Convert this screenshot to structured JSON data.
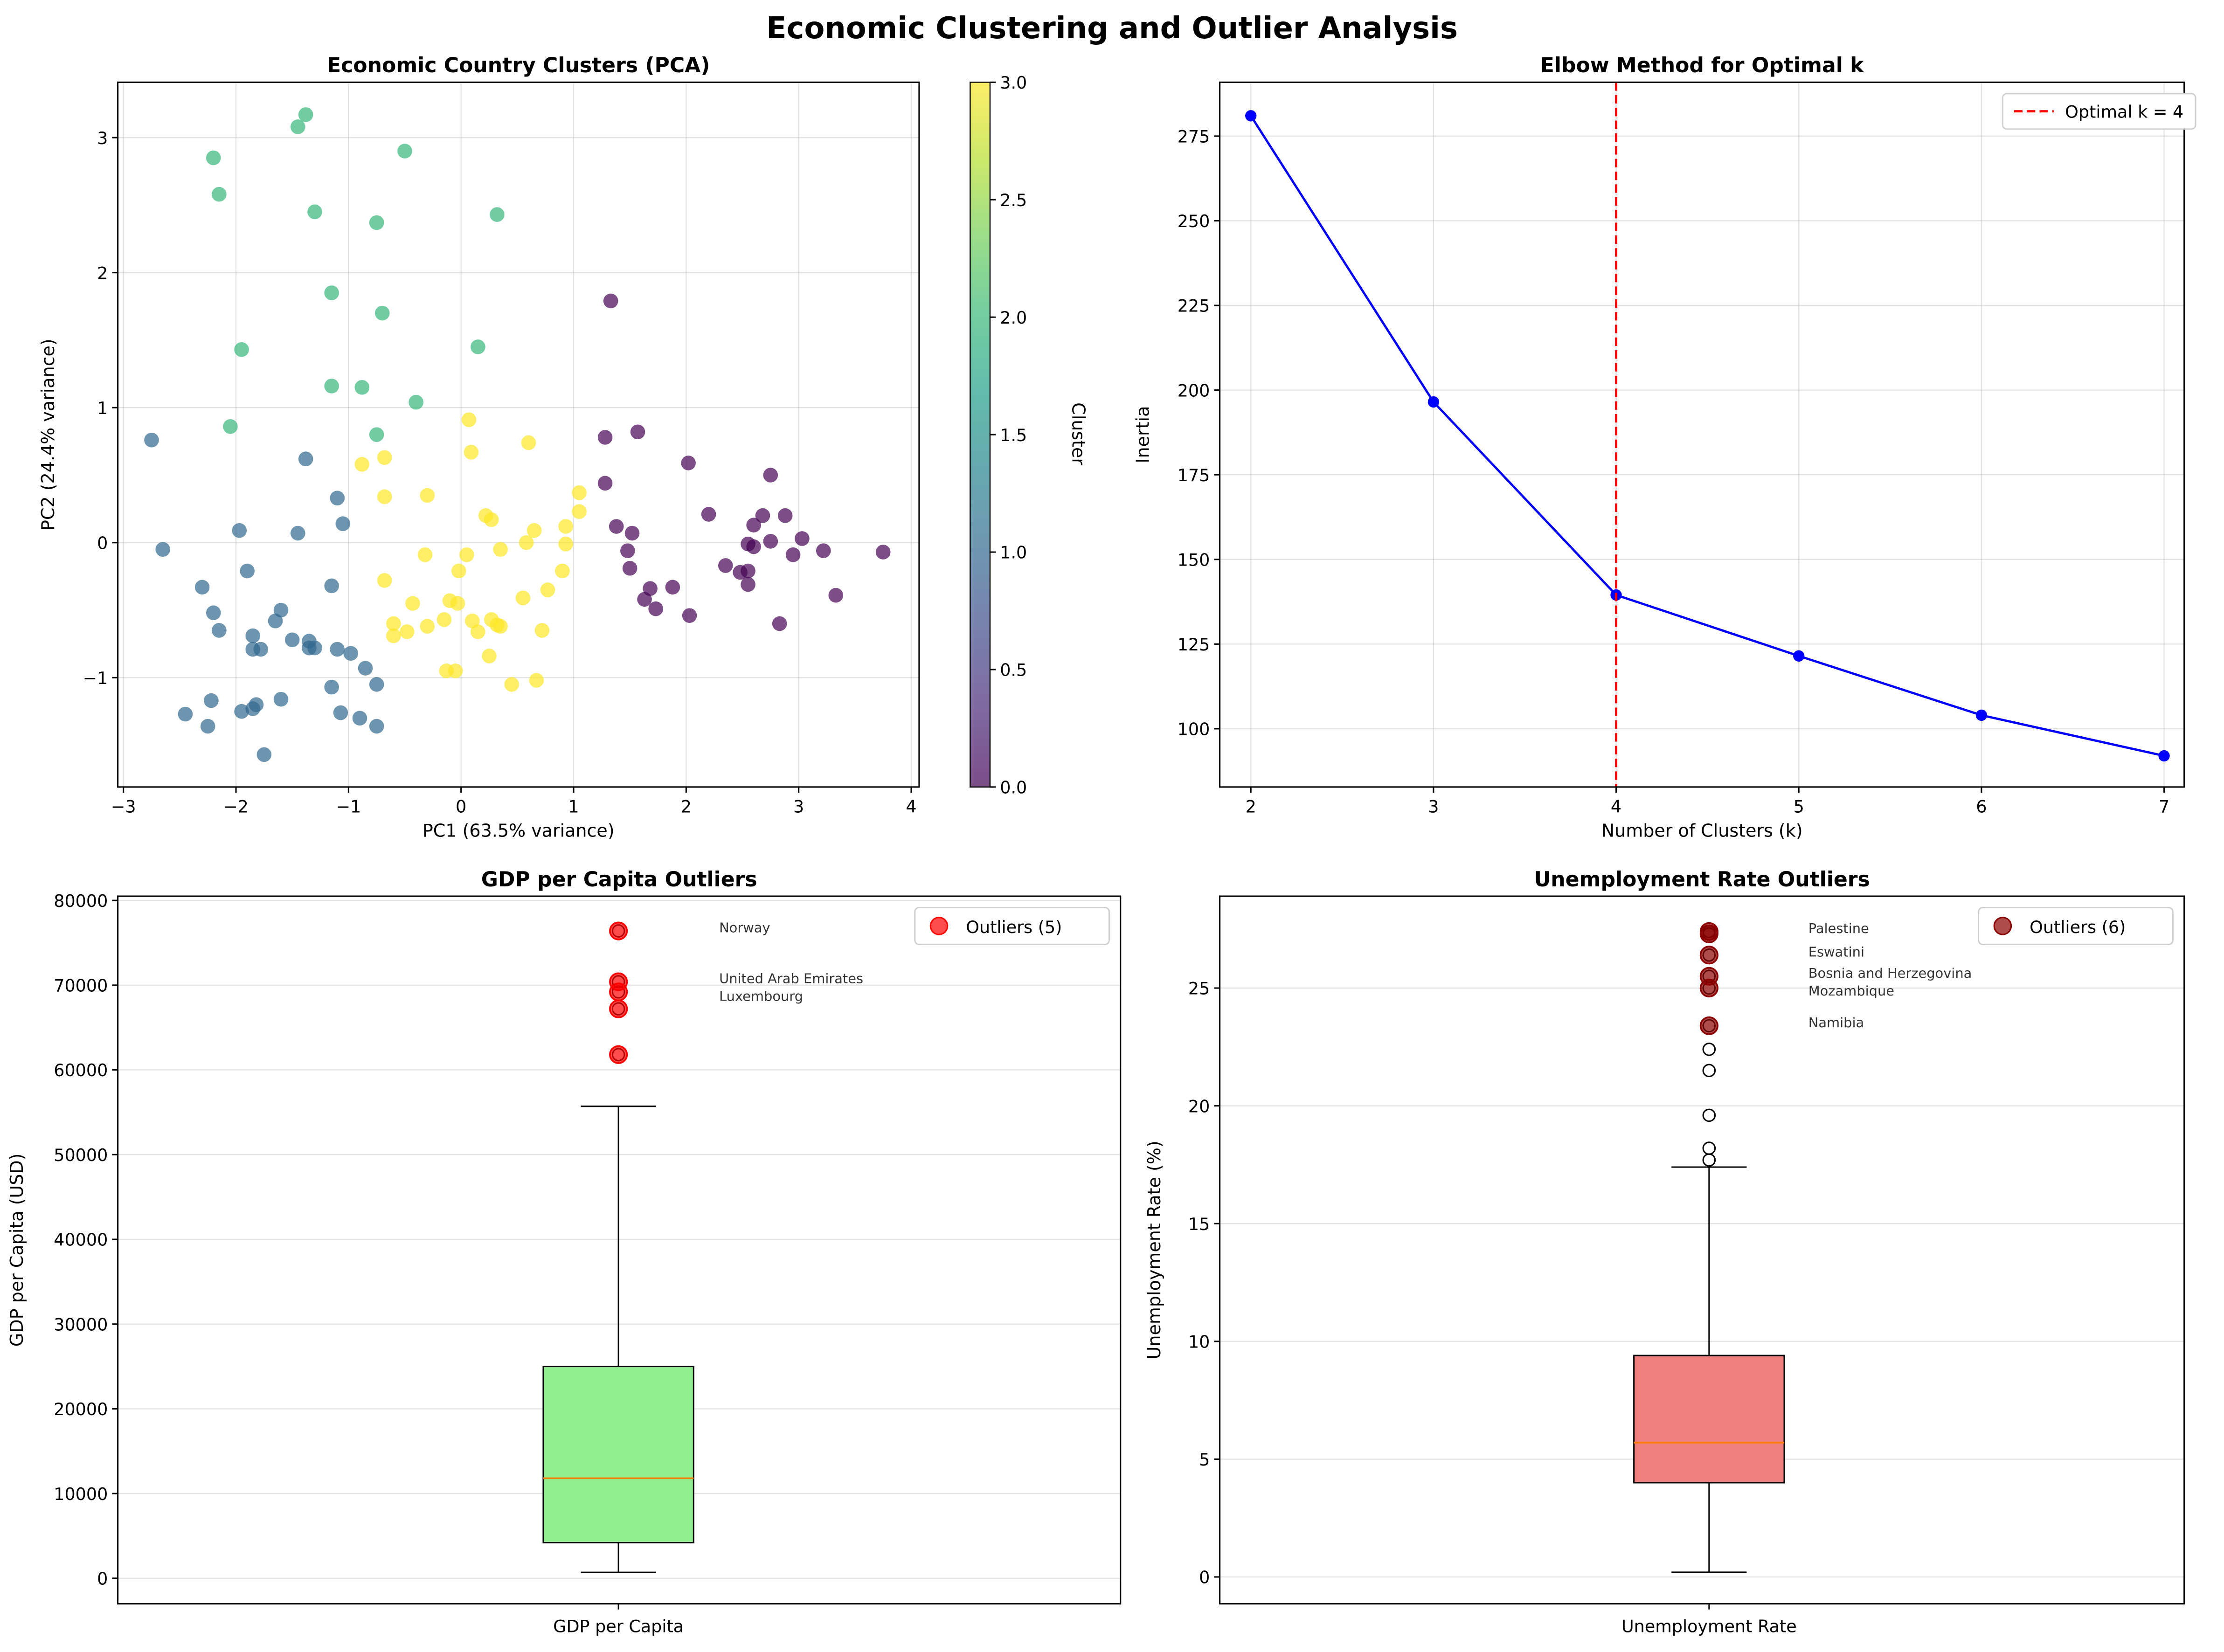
{
  "title": "Economic Clustering and Outlier Analysis",
  "chart_data": [
    {
      "type": "scatter",
      "title": "Economic Country Clusters (PCA)",
      "xlabel": "PC1 (63.5% variance)",
      "ylabel": "PC2 (24.4% variance)",
      "xlim": [
        -3.05,
        4.07
      ],
      "ylim": [
        -1.81,
        3.41
      ],
      "xticks": [
        -3,
        -2,
        -1,
        0,
        1,
        2,
        3,
        4
      ],
      "yticks": [
        -1,
        0,
        1,
        2,
        3
      ],
      "yticklabels": [
        "−1",
        "0",
        "1",
        "2",
        "3"
      ],
      "xticklabels": [
        "−3",
        "−2",
        "−1",
        "0",
        "1",
        "2",
        "3",
        "4"
      ],
      "grid": true,
      "colorbar": {
        "label": "Cluster",
        "range": [
          0,
          3
        ],
        "ticks": [
          "0.0",
          "0.5",
          "1.0",
          "1.5",
          "2.0",
          "2.5",
          "3.0"
        ]
      },
      "cluster_colors": [
        "#440154",
        "#31688e",
        "#35b779",
        "#fde725"
      ],
      "points": {
        "0": [
          [
            1.33,
            1.79
          ],
          [
            1.28,
            0.78
          ],
          [
            1.57,
            0.82
          ],
          [
            2.02,
            0.59
          ],
          [
            2.75,
            0.5
          ],
          [
            1.28,
            0.44
          ],
          [
            2.2,
            0.21
          ],
          [
            2.68,
            0.2
          ],
          [
            2.88,
            0.2
          ],
          [
            1.38,
            0.12
          ],
          [
            1.52,
            0.07
          ],
          [
            2.6,
            0.13
          ],
          [
            3.03,
            0.03
          ],
          [
            2.75,
            0.01
          ],
          [
            2.55,
            -0.01
          ],
          [
            2.6,
            -0.03
          ],
          [
            3.22,
            -0.06
          ],
          [
            3.75,
            -0.07
          ],
          [
            1.48,
            -0.06
          ],
          [
            2.95,
            -0.09
          ],
          [
            1.5,
            -0.19
          ],
          [
            2.35,
            -0.17
          ],
          [
            2.48,
            -0.22
          ],
          [
            2.55,
            -0.21
          ],
          [
            2.55,
            -0.31
          ],
          [
            1.68,
            -0.34
          ],
          [
            1.88,
            -0.33
          ],
          [
            3.33,
            -0.39
          ],
          [
            1.63,
            -0.42
          ],
          [
            1.73,
            -0.49
          ],
          [
            2.03,
            -0.54
          ],
          [
            2.83,
            -0.6
          ]
        ],
        "1": [
          [
            -2.75,
            0.76
          ],
          [
            -1.38,
            0.62
          ],
          [
            -1.1,
            0.33
          ],
          [
            -1.05,
            0.14
          ],
          [
            -1.97,
            0.09
          ],
          [
            -1.45,
            0.07
          ],
          [
            -2.65,
            -0.05
          ],
          [
            -1.9,
            -0.21
          ],
          [
            -2.3,
            -0.33
          ],
          [
            -1.15,
            -0.32
          ],
          [
            -2.2,
            -0.52
          ],
          [
            -1.6,
            -0.5
          ],
          [
            -1.65,
            -0.58
          ],
          [
            -2.15,
            -0.65
          ],
          [
            -1.85,
            -0.69
          ],
          [
            -1.5,
            -0.72
          ],
          [
            -1.35,
            -0.73
          ],
          [
            -1.35,
            -0.78
          ],
          [
            -1.3,
            -0.78
          ],
          [
            -1.85,
            -0.79
          ],
          [
            -1.78,
            -0.79
          ],
          [
            -1.1,
            -0.79
          ],
          [
            -0.98,
            -0.82
          ],
          [
            -0.85,
            -0.93
          ],
          [
            -1.15,
            -1.07
          ],
          [
            -0.75,
            -1.05
          ],
          [
            -2.22,
            -1.17
          ],
          [
            -1.6,
            -1.16
          ],
          [
            -1.82,
            -1.2
          ],
          [
            -1.85,
            -1.23
          ],
          [
            -1.95,
            -1.25
          ],
          [
            -2.45,
            -1.27
          ],
          [
            -1.07,
            -1.26
          ],
          [
            -0.9,
            -1.3
          ],
          [
            -2.25,
            -1.36
          ],
          [
            -0.75,
            -1.36
          ],
          [
            -1.75,
            -1.57
          ]
        ],
        "2": [
          [
            -2.2,
            2.85
          ],
          [
            -1.45,
            3.08
          ],
          [
            -1.38,
            3.17
          ],
          [
            -0.5,
            2.9
          ],
          [
            -2.15,
            2.58
          ],
          [
            -1.3,
            2.45
          ],
          [
            -0.75,
            2.37
          ],
          [
            0.32,
            2.43
          ],
          [
            -1.15,
            1.85
          ],
          [
            -0.7,
            1.7
          ],
          [
            -1.95,
            1.43
          ],
          [
            0.15,
            1.45
          ],
          [
            -1.15,
            1.16
          ],
          [
            -0.88,
            1.15
          ],
          [
            -0.4,
            1.04
          ],
          [
            -2.05,
            0.86
          ],
          [
            -0.75,
            0.8
          ]
        ],
        "3": [
          [
            0.07,
            0.91
          ],
          [
            0.6,
            0.74
          ],
          [
            0.09,
            0.67
          ],
          [
            -0.68,
            0.63
          ],
          [
            -0.88,
            0.58
          ],
          [
            1.05,
            0.37
          ],
          [
            -0.3,
            0.35
          ],
          [
            -0.68,
            0.34
          ],
          [
            1.05,
            0.23
          ],
          [
            0.22,
            0.2
          ],
          [
            0.27,
            0.17
          ],
          [
            0.93,
            0.12
          ],
          [
            0.65,
            0.09
          ],
          [
            0.58,
            0.0
          ],
          [
            0.93,
            -0.01
          ],
          [
            0.35,
            -0.05
          ],
          [
            -0.32,
            -0.09
          ],
          [
            0.05,
            -0.09
          ],
          [
            -0.02,
            -0.21
          ],
          [
            0.9,
            -0.21
          ],
          [
            -0.68,
            -0.28
          ],
          [
            0.77,
            -0.35
          ],
          [
            0.55,
            -0.41
          ],
          [
            -0.43,
            -0.45
          ],
          [
            -0.1,
            -0.43
          ],
          [
            -0.03,
            -0.45
          ],
          [
            -0.15,
            -0.57
          ],
          [
            0.1,
            -0.58
          ],
          [
            0.27,
            -0.57
          ],
          [
            0.32,
            -0.61
          ],
          [
            0.35,
            -0.62
          ],
          [
            -0.3,
            -0.62
          ],
          [
            -0.6,
            -0.6
          ],
          [
            0.72,
            -0.65
          ],
          [
            0.15,
            -0.66
          ],
          [
            -0.48,
            -0.66
          ],
          [
            -0.6,
            -0.69
          ],
          [
            0.25,
            -0.84
          ],
          [
            -0.13,
            -0.95
          ],
          [
            -0.05,
            -0.95
          ],
          [
            0.67,
            -1.02
          ],
          [
            0.45,
            -1.05
          ]
        ]
      }
    },
    {
      "type": "line",
      "title": "Elbow Method for Optimal k",
      "xlabel": "Number of Clusters (k)",
      "ylabel": "Inertia",
      "x": [
        2,
        3,
        4,
        5,
        6,
        7
      ],
      "y": [
        281,
        196.5,
        139.5,
        121.5,
        104,
        92
      ],
      "xlim": [
        1.83,
        7.11
      ],
      "ylim": [
        82.8,
        290.9
      ],
      "xticks": [
        2,
        3,
        4,
        5,
        6,
        7
      ],
      "yticks": [
        100,
        125,
        150,
        175,
        200,
        225,
        250,
        275
      ],
      "grid": true,
      "line_color": "#0000ff",
      "optimal_k": 4,
      "vline_color": "#ff0000",
      "legend": [
        "Optimal k = 4"
      ],
      "legend_position": "top-right"
    },
    {
      "type": "box",
      "title": "GDP per Capita Outliers",
      "xlabel": "",
      "xticklabel": "GDP per Capita",
      "ylabel": "GDP per Capita (USD)",
      "ylim": [
        -3012,
        80500
      ],
      "yticks": [
        0,
        10000,
        20000,
        30000,
        40000,
        50000,
        60000,
        70000,
        80000
      ],
      "box": {
        "whisker_low": 700,
        "q1": 4200,
        "median": 11800,
        "q3": 25000,
        "whisker_high": 55700
      },
      "fliers": [
        61800,
        67200,
        69200,
        70400,
        76400
      ],
      "box_color": "#90ee90",
      "outlier_color": "#ff0000",
      "outliers": [
        {
          "value": 76400,
          "label": "Norway"
        },
        {
          "value": 70400,
          "label": "United Arab Emirates"
        },
        {
          "value": 69200,
          "label": "Luxembourg"
        },
        {
          "value": 67200,
          "label": ""
        },
        {
          "value": 61800,
          "label": ""
        }
      ],
      "legend": [
        "Outliers (5)"
      ],
      "legend_position": "top-right"
    },
    {
      "type": "box",
      "title": "Unemployment Rate Outliers",
      "xlabel": "",
      "xticklabel": "Unemployment Rate",
      "ylabel": "Unemployment Rate (%)",
      "ylim": [
        -1.14,
        28.9
      ],
      "yticks": [
        0,
        5,
        10,
        15,
        20,
        25
      ],
      "box": {
        "whisker_low": 0.2,
        "q1": 4.0,
        "median": 5.7,
        "q3": 9.4,
        "whisker_high": 17.4
      },
      "fliers": [
        17.7,
        18.2,
        19.6,
        21.5,
        22.4,
        23.4,
        25.0,
        25.5,
        26.4,
        27.3,
        27.4
      ],
      "box_color": "#f08080",
      "outlier_color": "#8b0000",
      "outliers": [
        {
          "value": 27.4,
          "label": "Palestine"
        },
        {
          "value": 27.3,
          "label": ""
        },
        {
          "value": 26.4,
          "label": "Eswatini"
        },
        {
          "value": 25.5,
          "label": "Bosnia and Herzegovina"
        },
        {
          "value": 25.0,
          "label": "Mozambique"
        },
        {
          "value": 23.4,
          "label": "Namibia"
        }
      ],
      "legend": [
        "Outliers (6)"
      ],
      "legend_position": "top-right"
    }
  ]
}
